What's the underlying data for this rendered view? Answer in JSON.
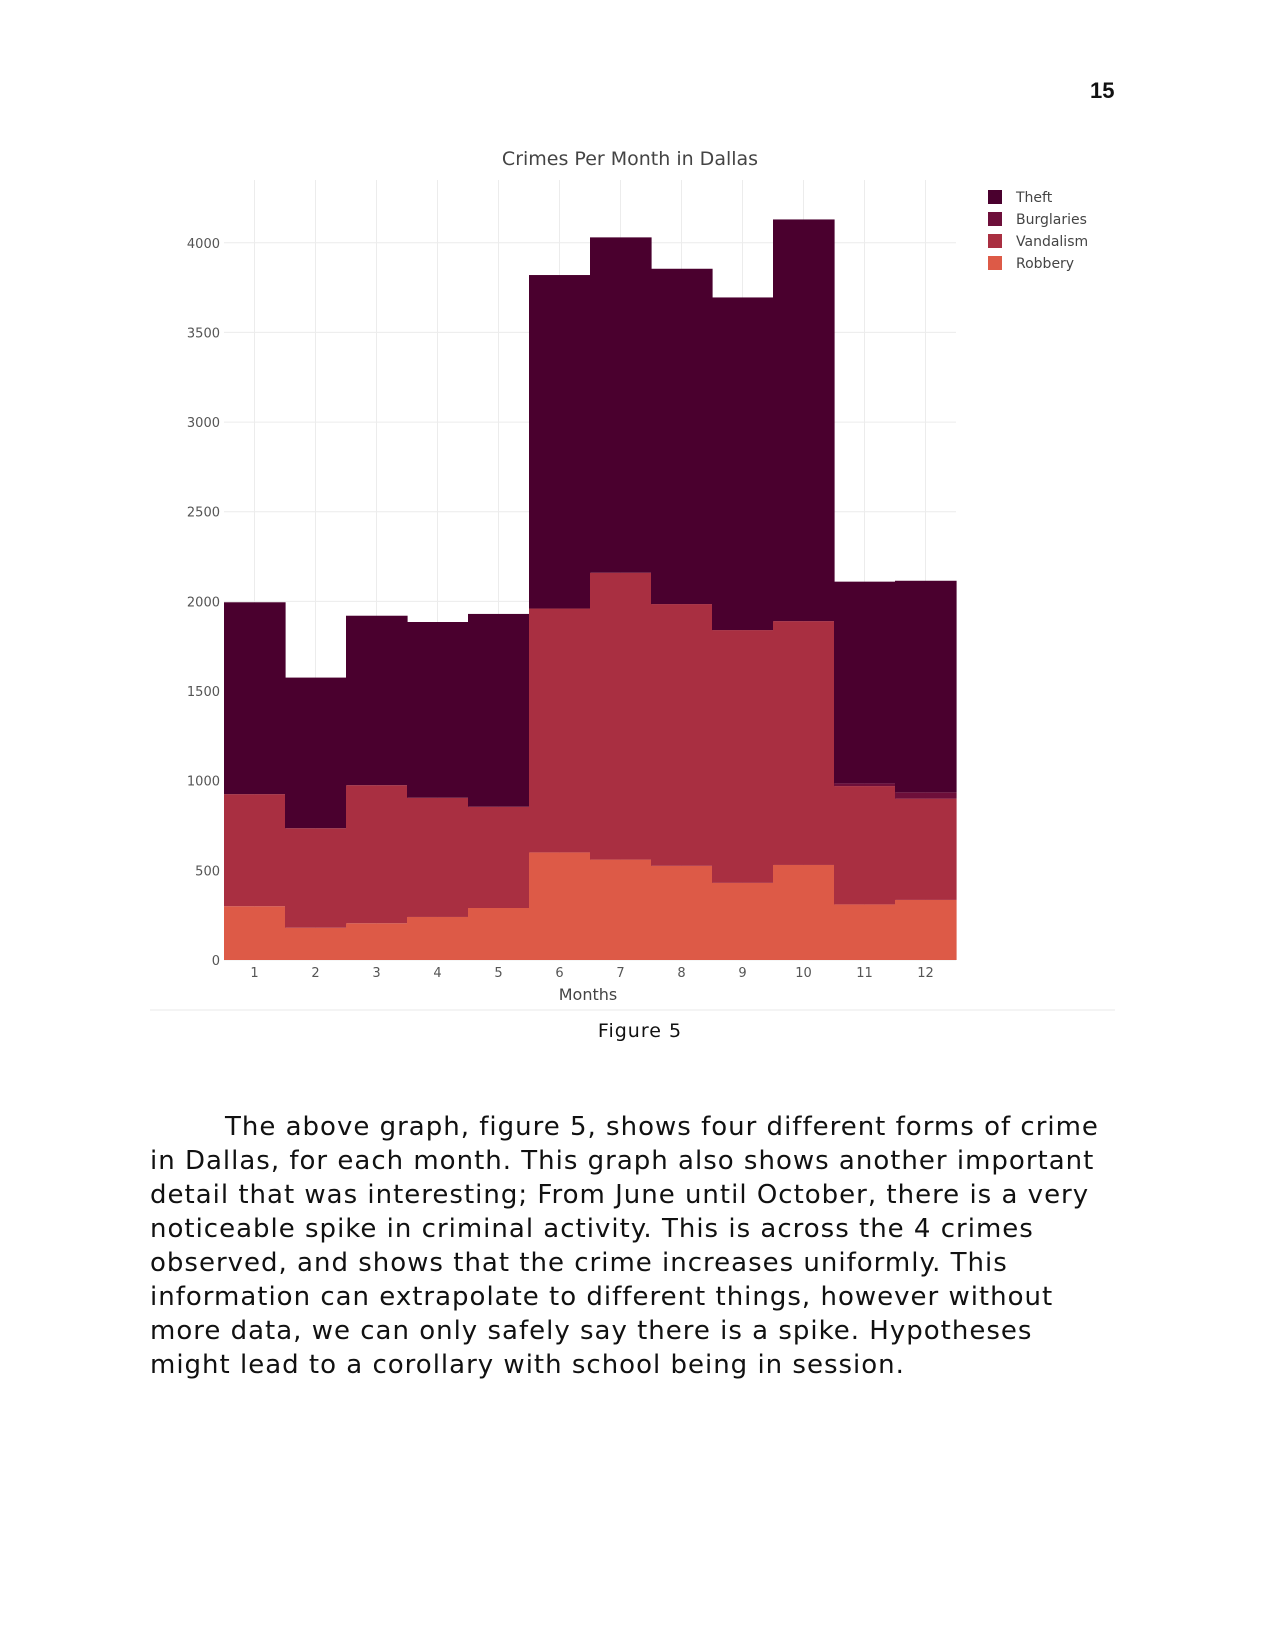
{
  "page": {
    "number": "15",
    "figure_caption": "Figure 5",
    "paragraph": "The above graph, figure 5, shows four different forms of crime in Dallas, for each month.  This graph also shows another important detail that was interesting; From June until October, there is a very noticeable spike in criminal activity.  This is across the 4 crimes observed, and shows that the crime increases uniformly.  This information can extrapolate to different things, however without more data, we can only safely say there is a spike.  Hypotheses might lead to a corollary with school being in session."
  },
  "chart_data": {
    "type": "bar",
    "stacked": true,
    "title": "Crimes Per Month in Dallas",
    "xlabel": "Months",
    "ylabel": "",
    "ylim": [
      0,
      4350
    ],
    "yticks": [
      0,
      500,
      1000,
      1500,
      2000,
      2500,
      3000,
      3500,
      4000
    ],
    "grid": true,
    "legend_position": "top-right",
    "categories": [
      "1",
      "2",
      "3",
      "4",
      "5",
      "6",
      "7",
      "8",
      "9",
      "10",
      "11",
      "12"
    ],
    "series": [
      {
        "name": "Robbery",
        "color": "#dd5a47",
        "values": [
          300,
          180,
          205,
          240,
          290,
          600,
          560,
          525,
          430,
          530,
          310,
          335
        ]
      },
      {
        "name": "Vandalism",
        "color": "#a92f41",
        "values": [
          625,
          555,
          770,
          665,
          565,
          1360,
          1600,
          1460,
          1410,
          1360,
          660,
          565
        ]
      },
      {
        "name": "Burglaries",
        "color": "#6d0f3a",
        "values": [
          0,
          0,
          0,
          0,
          0,
          0,
          0,
          0,
          0,
          0,
          15,
          35
        ]
      },
      {
        "name": "Theft",
        "color": "#4a002e",
        "values": [
          1070,
          840,
          945,
          980,
          1075,
          1860,
          1870,
          1870,
          1855,
          2240,
          1125,
          1180
        ]
      }
    ],
    "legend_order": [
      "Theft",
      "Burglaries",
      "Vandalism",
      "Robbery"
    ]
  }
}
